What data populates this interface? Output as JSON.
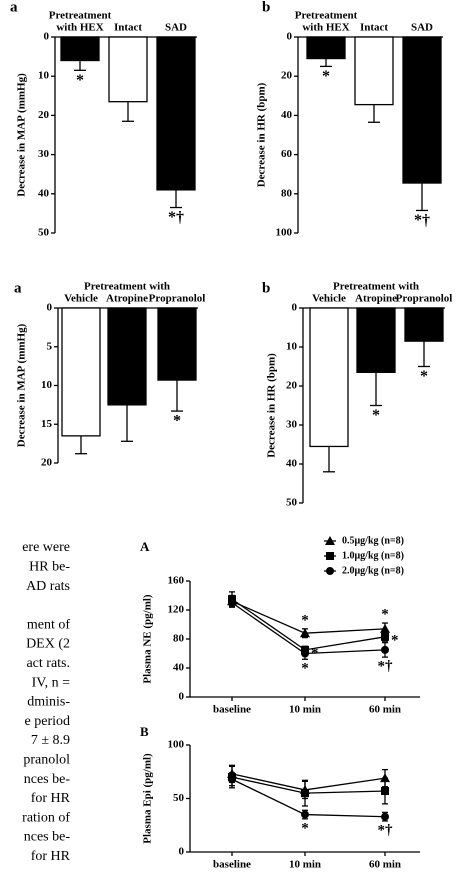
{
  "chart_data": [
    {
      "type": "bar",
      "panel": "a",
      "group_label": "Pretreatment",
      "categories": [
        "with HEX",
        "Intact",
        "SAD"
      ],
      "values": [
        6,
        16.5,
        39
      ],
      "errors": [
        2.5,
        5,
        4.5
      ],
      "bar_labels": [
        "*",
        null,
        "*†"
      ],
      "colors": [
        "#000000",
        "#ffffff",
        "#000000"
      ],
      "ylabel": "Decrease in MAP (mmHg)",
      "ylim": [
        0,
        50
      ],
      "yticks": [
        0,
        10,
        20,
        30,
        40,
        50
      ],
      "invert_y": true
    },
    {
      "type": "bar",
      "panel": "b",
      "group_label": "Pretreatment",
      "categories": [
        "with HEX",
        "Intact",
        "SAD"
      ],
      "values": [
        11,
        34.5,
        74.5
      ],
      "errors": [
        4,
        9,
        14
      ],
      "bar_labels": [
        "*",
        null,
        "*†"
      ],
      "colors": [
        "#000000",
        "#ffffff",
        "#000000"
      ],
      "ylabel": "Decrease in HR (bpm)",
      "ylim": [
        0,
        100
      ],
      "yticks": [
        0,
        20,
        40,
        60,
        80,
        100
      ],
      "invert_y": true
    },
    {
      "type": "bar",
      "panel": "a",
      "group_label": "Pretreatment with",
      "categories": [
        "Vehicle",
        "Atropine",
        "Propranolol"
      ],
      "values": [
        16.5,
        12.5,
        9.3
      ],
      "errors": [
        2.3,
        4.7,
        4
      ],
      "bar_labels": [
        null,
        null,
        "*"
      ],
      "colors": [
        "#ffffff",
        "#000000",
        "#000000"
      ],
      "ylabel": "Decrease in MAP (mmHg)",
      "ylim": [
        0,
        20
      ],
      "yticks": [
        0,
        5,
        10,
        15,
        20
      ],
      "invert_y": true
    },
    {
      "type": "bar",
      "panel": "b",
      "group_label": "Pretreatment with",
      "categories": [
        "Vehicle",
        "Atropine",
        "Propranolol"
      ],
      "values": [
        35.5,
        16.5,
        8.5
      ],
      "errors": [
        6.5,
        8.5,
        6.5
      ],
      "bar_labels": [
        null,
        "*",
        "*"
      ],
      "colors": [
        "#ffffff",
        "#000000",
        "#000000"
      ],
      "ylabel": "Decrease in HR (bpm)",
      "ylim": [
        0,
        50
      ],
      "yticks": [
        0,
        10,
        20,
        30,
        40,
        50
      ],
      "invert_y": true
    },
    {
      "type": "line",
      "panel": "A",
      "ylabel": "Plasma NE (pg/ml)",
      "categories": [
        "baseline",
        "10 min",
        "60 min"
      ],
      "ylim": [
        0,
        160
      ],
      "yticks": [
        0,
        40,
        80,
        120,
        160
      ],
      "legend": "top-right",
      "series": [
        {
          "name": "0.5μg/kg (n=8)",
          "marker": "triangle",
          "color": "#000000",
          "values": [
            132,
            88,
            94
          ],
          "errors": [
            8,
            6,
            8
          ],
          "point_labels": [
            null,
            "*",
            "*"
          ],
          "label_side": "above"
        },
        {
          "name": "1.0μg/kg (n=8)",
          "marker": "square",
          "color": "#000000",
          "values": [
            135,
            65,
            83
          ],
          "errors": [
            10,
            5,
            6
          ],
          "point_labels": [
            null,
            "*",
            "*"
          ],
          "label_side": "right"
        },
        {
          "name": "2.0μg/kg (n=8)",
          "marker": "circle",
          "color": "#000000",
          "values": [
            130,
            60,
            65
          ],
          "errors": [
            6,
            8,
            10
          ],
          "point_labels": [
            null,
            "*",
            "*†"
          ],
          "label_side": "below"
        }
      ]
    },
    {
      "type": "line",
      "panel": "B",
      "ylabel": "Plasma Epi (pg/ml)",
      "categories": [
        "baseline",
        "10 min",
        "60 min"
      ],
      "ylim": [
        0,
        100
      ],
      "yticks": [
        0,
        50,
        100
      ],
      "series": [
        {
          "marker": "triangle",
          "color": "#000000",
          "values": [
            73,
            58,
            69
          ],
          "errors": [
            8,
            8,
            8
          ]
        },
        {
          "marker": "square",
          "color": "#000000",
          "values": [
            70,
            55,
            57
          ],
          "errors": [
            10,
            12,
            12
          ]
        },
        {
          "marker": "circle",
          "color": "#000000",
          "values": [
            68,
            35,
            33
          ],
          "errors": [
            6,
            4,
            4
          ],
          "point_labels": [
            null,
            "*",
            "*†"
          ],
          "label_side": "below"
        }
      ]
    }
  ],
  "text_fragments": [
    "ere were",
    "HR be-",
    "AD rats",
    "ment of",
    "DEX (2",
    "act rats.",
    "IV, n =",
    "dminis-",
    "e period",
    "7 ± 8.9",
    "pranolol",
    "nces be-",
    "for HR",
    "ration of",
    "nces be-",
    "for HR"
  ]
}
